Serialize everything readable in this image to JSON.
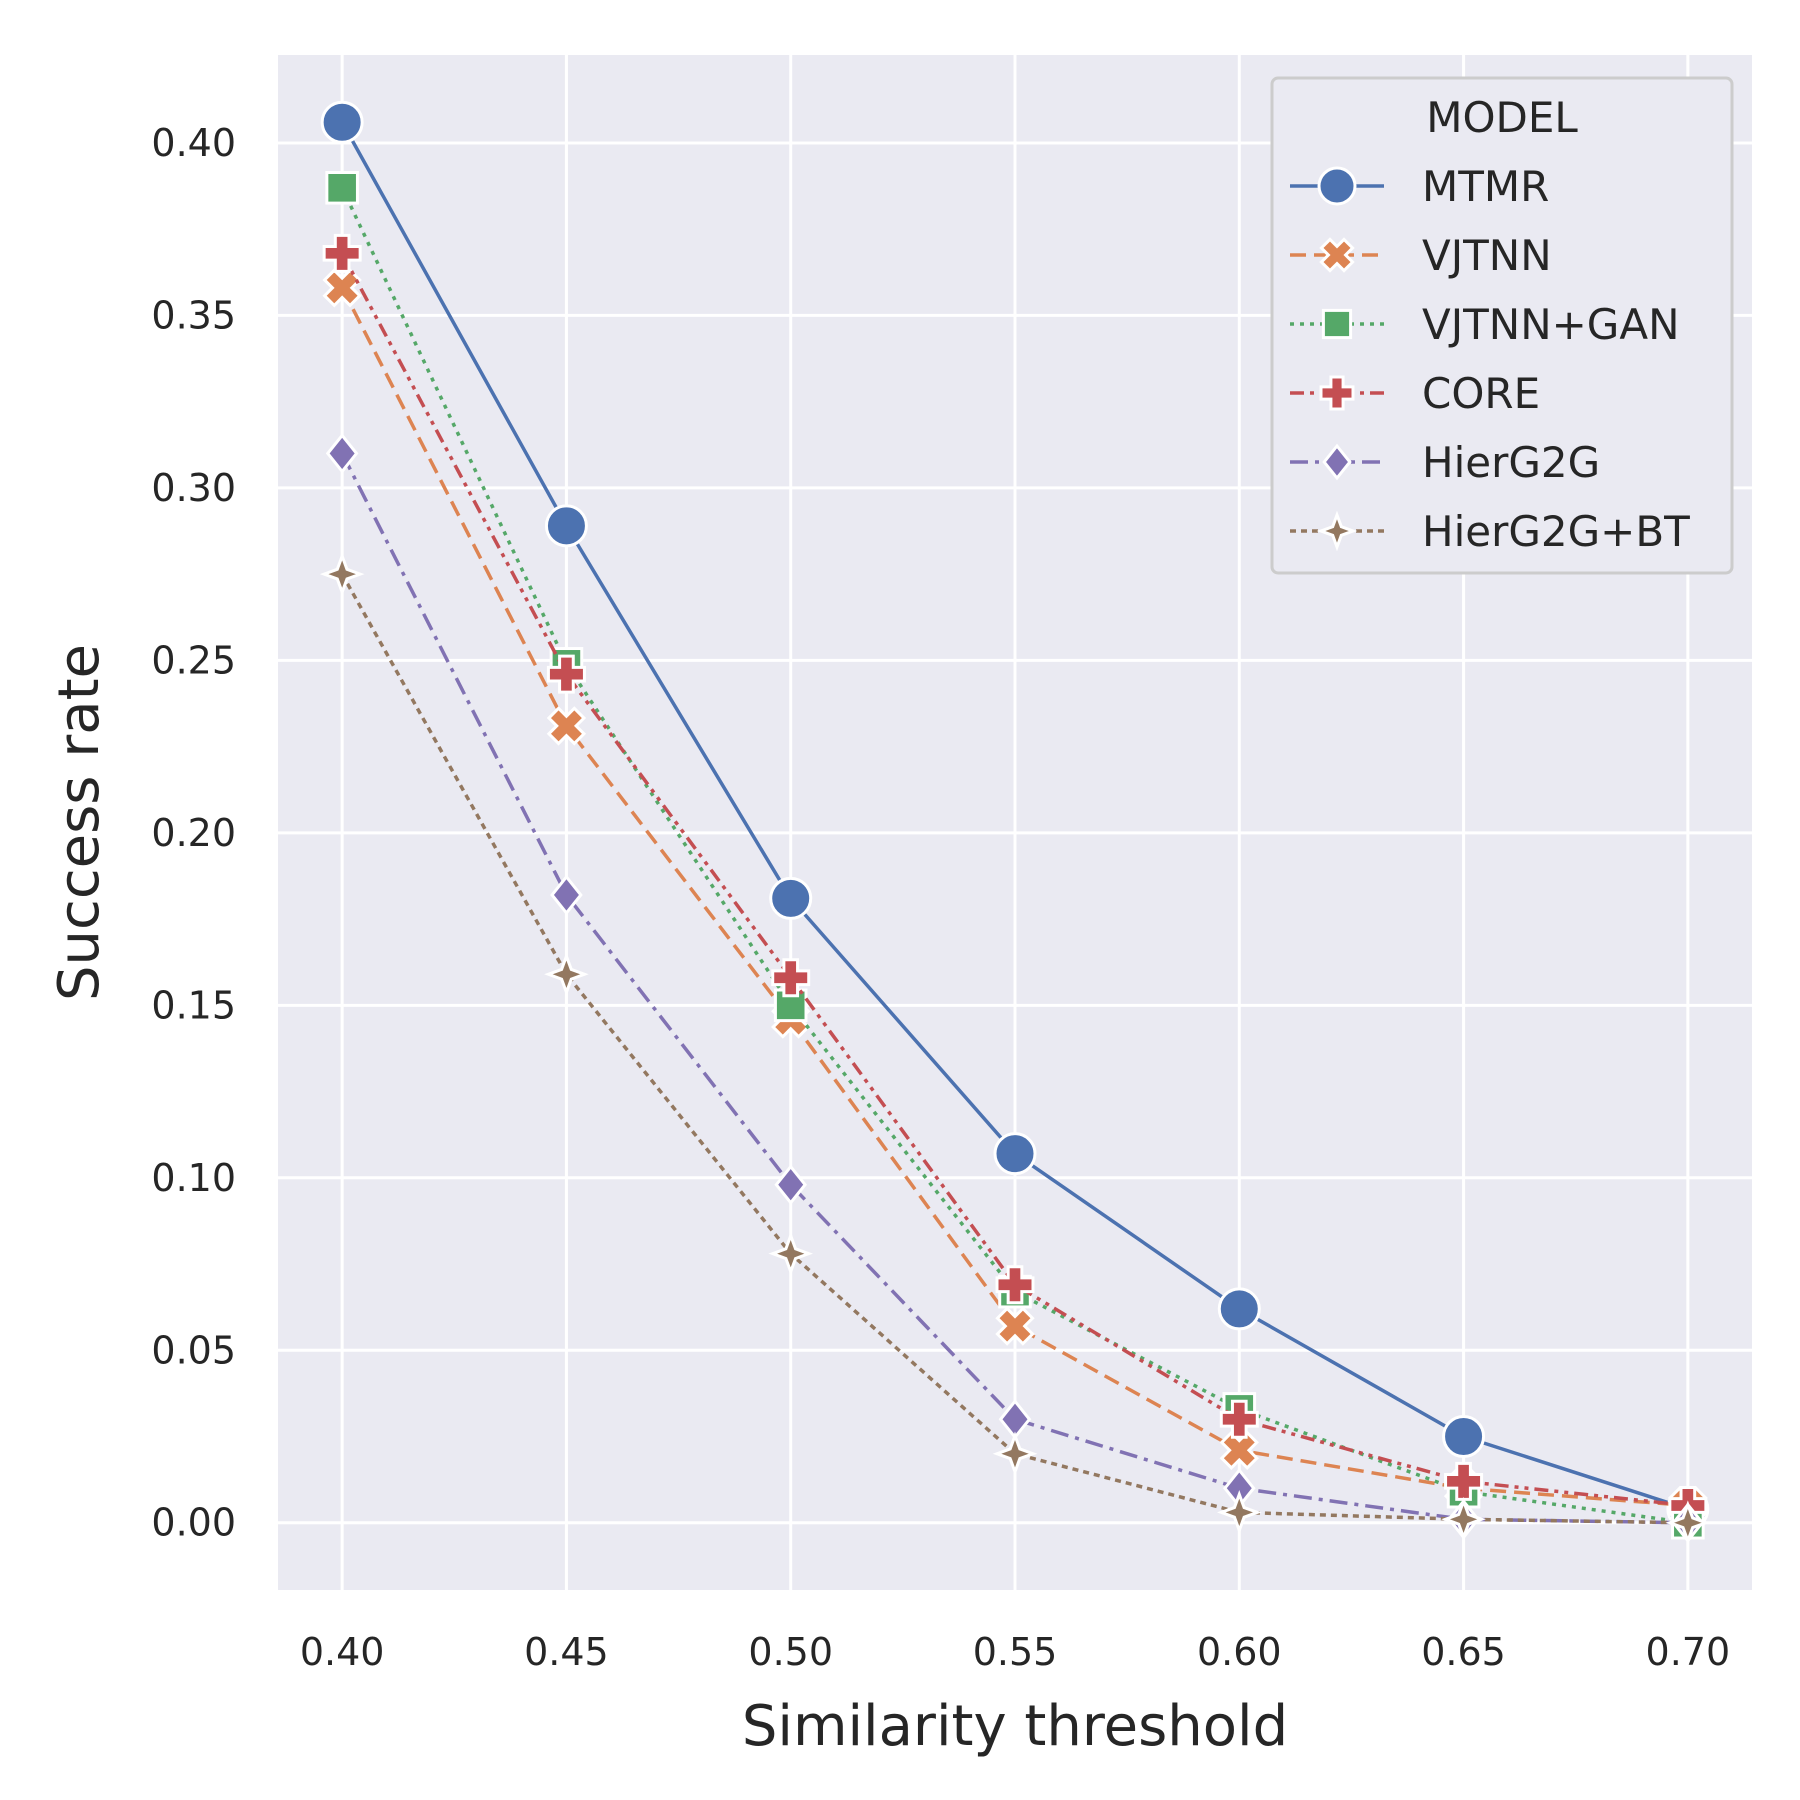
{
  "chart_data": {
    "type": "line",
    "title": "",
    "xlabel": "Similarity threshold",
    "ylabel": "Success rate",
    "x": [
      0.4,
      0.45,
      0.5,
      0.55,
      0.6,
      0.65,
      0.7
    ],
    "x_tick_labels": [
      "0.40",
      "0.45",
      "0.50",
      "0.55",
      "0.60",
      "0.65",
      "0.70"
    ],
    "y_tick_values": [
      0.0,
      0.05,
      0.1,
      0.15,
      0.2,
      0.25,
      0.3,
      0.35,
      0.4
    ],
    "y_tick_labels": [
      "0.00",
      "0.05",
      "0.10",
      "0.15",
      "0.20",
      "0.25",
      "0.30",
      "0.35",
      "0.40"
    ],
    "xlim": [
      0.3857,
      0.7143
    ],
    "ylim": [
      -0.0195,
      0.4255
    ],
    "grid": true,
    "background": "#eaeaf2",
    "legend": {
      "title": "MODEL",
      "placement": "top-right"
    },
    "series": [
      {
        "name": "MTMR",
        "color": "#4c72b0",
        "marker": "circle",
        "dash": "solid",
        "values": [
          0.406,
          0.289,
          0.181,
          0.107,
          0.062,
          0.025,
          0.004
        ]
      },
      {
        "name": "VJTNN",
        "color": "#dd8452",
        "marker": "x",
        "dash": "dashed",
        "values": [
          0.358,
          0.231,
          0.146,
          0.057,
          0.021,
          0.01,
          0.005
        ]
      },
      {
        "name": "VJTNN+GAN",
        "color": "#55a868",
        "marker": "square",
        "dash": "dotted",
        "values": [
          0.387,
          0.249,
          0.15,
          0.067,
          0.033,
          0.009,
          0.0
        ]
      },
      {
        "name": "CORE",
        "color": "#c44e52",
        "marker": "plus",
        "dash": "dashdotdot",
        "values": [
          0.368,
          0.246,
          0.158,
          0.069,
          0.03,
          0.012,
          0.005
        ]
      },
      {
        "name": "HierG2G",
        "color": "#8172b3",
        "marker": "diamond",
        "dash": "dashdot",
        "values": [
          0.31,
          0.182,
          0.098,
          0.03,
          0.01,
          0.001,
          0.0
        ]
      },
      {
        "name": "HierG2G+BT",
        "color": "#937860",
        "marker": "star",
        "dash": "densedash",
        "values": [
          0.275,
          0.159,
          0.078,
          0.02,
          0.003,
          0.001,
          0.0
        ]
      }
    ]
  }
}
